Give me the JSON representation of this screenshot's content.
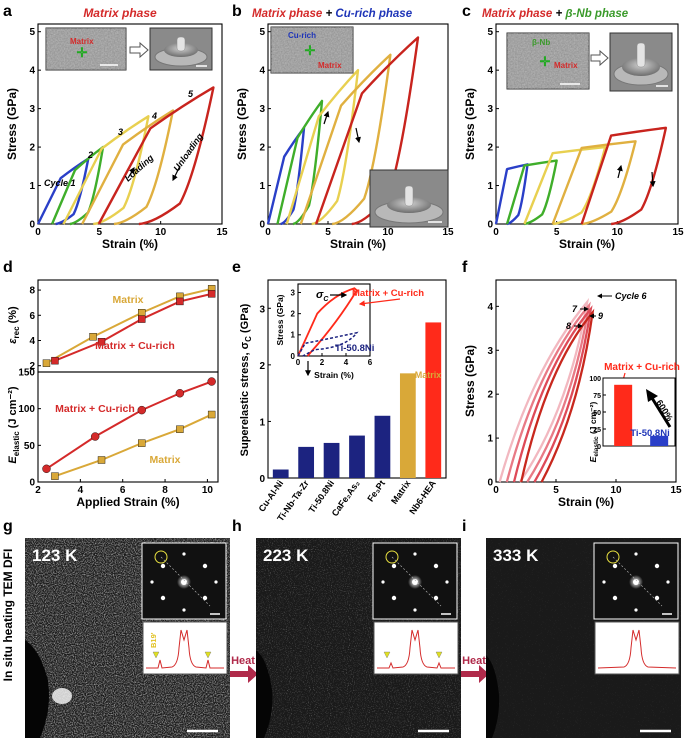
{
  "colors": {
    "matrix_red": "#d42a2a",
    "cu_blue": "#1f35b8",
    "nb_green": "#3a9a2a",
    "gold": "#d9a838",
    "navy": "#1c2380",
    "bright_red": "#ff2a1a",
    "pink": "#e8a0a8",
    "tem_red": "#b02a4a",
    "cycle_blue": "#2a3fc8",
    "cycle_green": "#3fae2a",
    "cycle_yellow": "#e8d050",
    "cycle_gold": "#e0b040",
    "cycle_red": "#c8241e"
  },
  "panels": {
    "a": {
      "letter": "a",
      "title": "Matrix phase",
      "inset_label": "Matrix",
      "cycle_labels": [
        "Cycle 1",
        "2",
        "3",
        "4",
        "5"
      ],
      "loading": "Loading",
      "unloading": "Unloading"
    },
    "b": {
      "letter": "b",
      "title_part1": "Matrix phase",
      "title_plus": " + ",
      "title_part2": "Cu-rich phase",
      "inset_label_cu": "Cu-rich",
      "inset_label_matrix": "Matrix"
    },
    "c": {
      "letter": "c",
      "title_part1": "Matrix phase",
      "title_plus": " + ",
      "title_part2": "β-Nb phase",
      "inset_label_nb": "β-Nb",
      "inset_label_matrix": "Matrix"
    },
    "d": {
      "letter": "d",
      "top_ylabel_sym": "ε",
      "top_ylabel_sub": "rec",
      "top_ylabel_unit": " (%)",
      "bottom_ylabel_sym": "E",
      "bottom_ylabel_sub": "elastic",
      "bottom_ylabel_unit": " (J cm⁻²)",
      "legend_matrix": "Matrix",
      "legend_cu": "Matrix + Cu-rich"
    },
    "e": {
      "letter": "e",
      "ylabel": "Superelastic stress, σ",
      "ylabel_sub": "C",
      "ylabel_unit": " (GPa)",
      "inset_xlabel": "Strain (%)",
      "inset_ylabel": "Stress (GPa)",
      "inset_sigma": "σ",
      "inset_sigma_sub": "C",
      "inset_legend_hea": "Matrix + Cu-rich",
      "inset_legend_ti": "Ti-50.8Ni",
      "matrix_bar_label": "Matrix"
    },
    "f": {
      "letter": "f",
      "cycle6": "Cycle 6",
      "cycle7": "7",
      "cycle8": "8",
      "cycle9": "9",
      "legend_hea": "Matrix + Cu-rich",
      "legend_ti": "Ti-50.8Ni",
      "pct": "600%",
      "inset_ylabel_sym": "E",
      "inset_ylabel_sub": "elastic",
      "inset_ylabel_unit": " (J cm⁻²)"
    },
    "tem": {
      "side_label": "In situ heating TEM DFI",
      "heat": "Heat",
      "bcc_label": "B19'",
      "panels": [
        {
          "letter": "g",
          "temp": "123 K"
        },
        {
          "letter": "h",
          "temp": "223 K"
        },
        {
          "letter": "i",
          "temp": "333 K"
        }
      ]
    }
  },
  "chart_data": [
    {
      "id": "a",
      "type": "line",
      "xlabel": "Strain (%)",
      "ylabel": "Stress (GPa)",
      "xlim": [
        0,
        15
      ],
      "ylim": [
        0,
        5.2
      ],
      "xticks": [
        "0",
        "5",
        "10",
        "15"
      ],
      "yticks": [
        "0",
        "1",
        "2",
        "3",
        "4",
        "5"
      ],
      "series": [
        {
          "name": "Cycle 1",
          "peak_strain": 4.1,
          "peak_stress": 1.7
        },
        {
          "name": "Cycle 2",
          "peak_strain": 5.3,
          "peak_stress": 2.0
        },
        {
          "name": "Cycle 3",
          "peak_strain": 9.0,
          "peak_stress": 2.8
        },
        {
          "name": "Cycle 4",
          "peak_strain": 11.0,
          "peak_stress": 2.95
        },
        {
          "name": "Cycle 5",
          "peak_strain": 14.3,
          "peak_stress": 3.55
        }
      ]
    },
    {
      "id": "b",
      "type": "line",
      "xlabel": "Strain (%)",
      "ylabel": "Stress (GPa)",
      "xlim": [
        0,
        15
      ],
      "ylim": [
        0,
        5.2
      ],
      "xticks": [
        "0",
        "5",
        "10",
        "15"
      ],
      "yticks": [
        "0",
        "1",
        "2",
        "3",
        "4",
        "5"
      ],
      "series": [
        {
          "name": "Cycle 1",
          "peak_strain": 3.0,
          "peak_stress": 2.5
        },
        {
          "name": "Cycle 2",
          "peak_strain": 4.5,
          "peak_stress": 3.2
        },
        {
          "name": "Cycle 3",
          "peak_strain": 7.5,
          "peak_stress": 4.0
        },
        {
          "name": "Cycle 4",
          "peak_strain": 10.2,
          "peak_stress": 4.4
        },
        {
          "name": "Cycle 5",
          "peak_strain": 12.5,
          "peak_stress": 4.85
        }
      ]
    },
    {
      "id": "c",
      "type": "line",
      "xlabel": "Strain (%)",
      "ylabel": "Stress (GPa)",
      "xlim": [
        0,
        15
      ],
      "ylim": [
        0,
        5.2
      ],
      "xticks": [
        "0",
        "5",
        "10",
        "15"
      ],
      "yticks": [
        "0",
        "1",
        "2",
        "3",
        "4",
        "5"
      ],
      "series": [
        {
          "name": "Cycle 1",
          "peak_strain": 2.6,
          "peak_stress": 1.55
        },
        {
          "name": "Cycle 2",
          "peak_strain": 5.0,
          "peak_stress": 1.65
        },
        {
          "name": "Cycle 3",
          "peak_strain": 9.0,
          "peak_stress": 2.0
        },
        {
          "name": "Cycle 4",
          "peak_strain": 11.5,
          "peak_stress": 2.15
        },
        {
          "name": "Cycle 5",
          "peak_strain": 14.0,
          "peak_stress": 2.5
        }
      ]
    },
    {
      "id": "d_top",
      "type": "line",
      "ylabel": "ε_rec (%)",
      "xlim": [
        2,
        10.5
      ],
      "ylim": [
        1.5,
        8.8
      ],
      "yticks": [
        "2",
        "4",
        "6",
        "8"
      ],
      "series": [
        {
          "name": "Matrix",
          "x": [
            2.4,
            4.6,
            6.9,
            8.7,
            10.2
          ],
          "y": [
            2.2,
            4.3,
            6.2,
            7.5,
            8.1
          ]
        },
        {
          "name": "Matrix + Cu-rich",
          "x": [
            2.8,
            5.0,
            6.9,
            8.7,
            10.2
          ],
          "y": [
            2.4,
            3.9,
            5.7,
            7.1,
            7.7
          ]
        }
      ]
    },
    {
      "id": "d_bottom",
      "type": "line",
      "xlabel": "Applied Strain (%)",
      "ylabel": "E_elastic (J cm⁻²)",
      "xlim": [
        2,
        10.5
      ],
      "ylim": [
        0,
        150
      ],
      "xticks": [
        "2",
        "4",
        "6",
        "8",
        "10"
      ],
      "yticks": [
        "0",
        "50",
        "100",
        "150"
      ],
      "series": [
        {
          "name": "Matrix + Cu-rich",
          "x": [
            2.4,
            4.7,
            6.9,
            8.7,
            10.2
          ],
          "y": [
            18,
            62,
            98,
            121,
            137
          ]
        },
        {
          "name": "Matrix",
          "x": [
            2.8,
            5.0,
            6.9,
            8.7,
            10.2
          ],
          "y": [
            8,
            30,
            53,
            72,
            92
          ]
        }
      ]
    },
    {
      "id": "e",
      "type": "bar",
      "ylim": [
        0,
        3.5
      ],
      "yticks": [
        "0",
        "1",
        "2",
        "3"
      ],
      "categories": [
        "Cu-Al-Ni",
        "Ti-Nb-Ta-Zr",
        "Ti-50.8Ni",
        "CaFe₂As₂",
        "Fe₃Pt",
        "Matrix",
        "Nb6-HEA"
      ],
      "values": [
        0.15,
        0.55,
        0.62,
        0.75,
        1.1,
        1.85,
        2.75
      ]
    },
    {
      "id": "e_inset",
      "type": "line",
      "xlabel": "Strain (%)",
      "ylabel": "Stress (GPa)",
      "xlim": [
        0,
        6
      ],
      "ylim": [
        0,
        3.4
      ],
      "xticks": [
        "0",
        "2",
        "4",
        "6"
      ],
      "yticks": [
        "0",
        "1",
        "2",
        "3"
      ]
    },
    {
      "id": "f",
      "type": "line",
      "xlabel": "Strain (%)",
      "ylabel": "Stress (GPa)",
      "xlim": [
        0,
        15
      ],
      "ylim": [
        0,
        4.6
      ],
      "xticks": [
        "0",
        "5",
        "10",
        "15"
      ],
      "yticks": [
        "0",
        "1",
        "2",
        "3",
        "4"
      ]
    },
    {
      "id": "f_inset",
      "type": "bar",
      "ylim": [
        0,
        100
      ],
      "yticks": [
        "0",
        "25",
        "50",
        "75",
        "100"
      ],
      "categories": [
        "Matrix + Cu-rich",
        "Ti-50.8Ni"
      ],
      "values": [
        90,
        15
      ]
    }
  ]
}
